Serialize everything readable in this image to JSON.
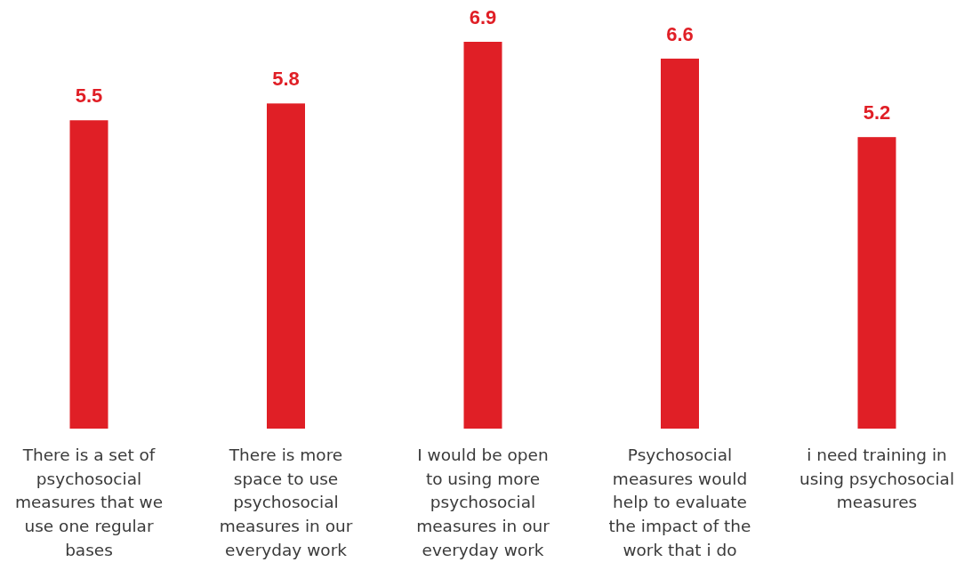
{
  "chart_data": {
    "type": "bar",
    "categories": [
      "There is a set of\npsychosocial\nmeasures that we\nuse one regular\nbases",
      "There is more\nspace to use\npsychosocial\nmeasures in our\neveryday work",
      "I would be open\nto using more\npsychosocial\nmeasures in our\neveryday work",
      "Psychosocial\nmeasures would\nhelp to evaluate\nthe impact of the\nwork that i do",
      "i need training in\nusing psychosocial\nmeasures"
    ],
    "values": [
      5.5,
      5.8,
      6.9,
      6.6,
      5.2
    ],
    "color": "#e01f26",
    "data_labels": true
  }
}
